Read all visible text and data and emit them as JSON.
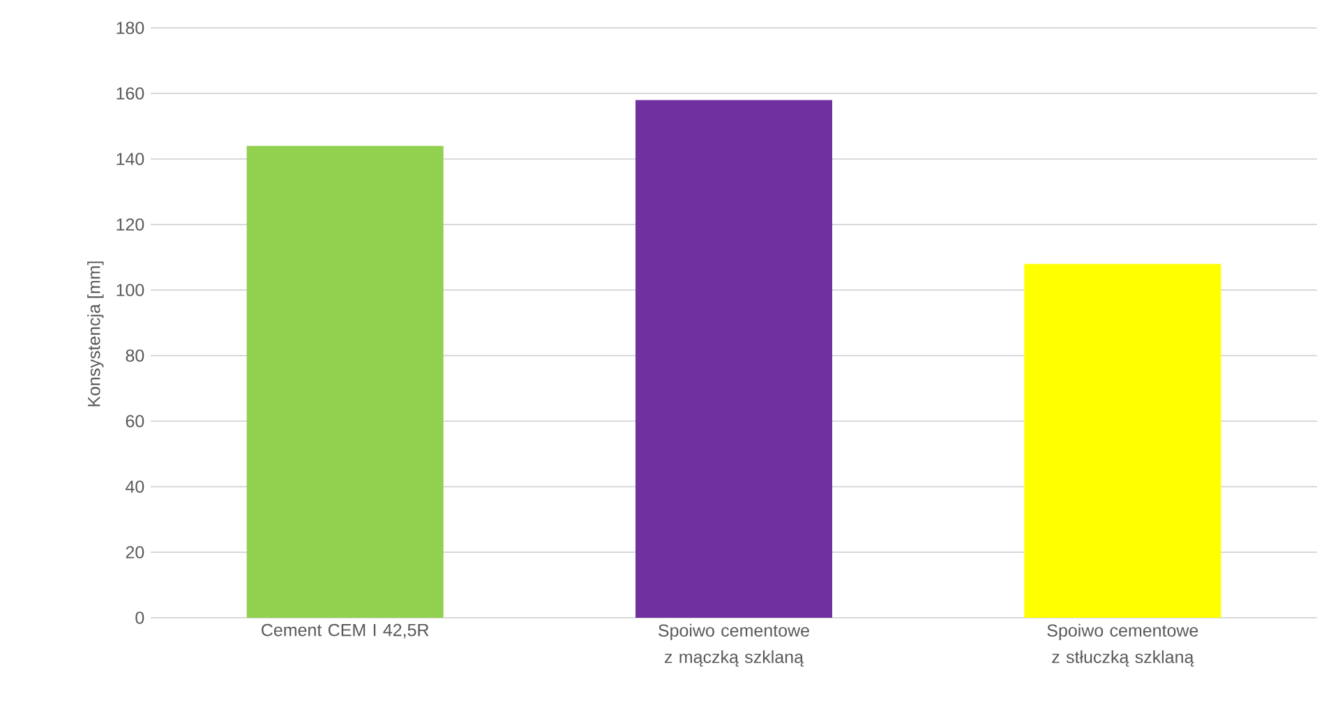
{
  "chart_data": {
    "type": "bar",
    "categories": [
      "Cement CEM I 42,5R",
      "Spoiwo cementowe z mączką szklaną",
      "Spoiwo cementowe z stłuczką szklaną"
    ],
    "values": [
      144,
      158,
      108
    ],
    "colors": [
      "#92d050",
      "#7030a0",
      "#ffff00"
    ],
    "ylabel": "Konsystencja [mm]",
    "ylim": [
      0,
      180
    ],
    "yticks": [
      0,
      20,
      40,
      60,
      80,
      100,
      120,
      140,
      160,
      180
    ],
    "grid": "y"
  }
}
